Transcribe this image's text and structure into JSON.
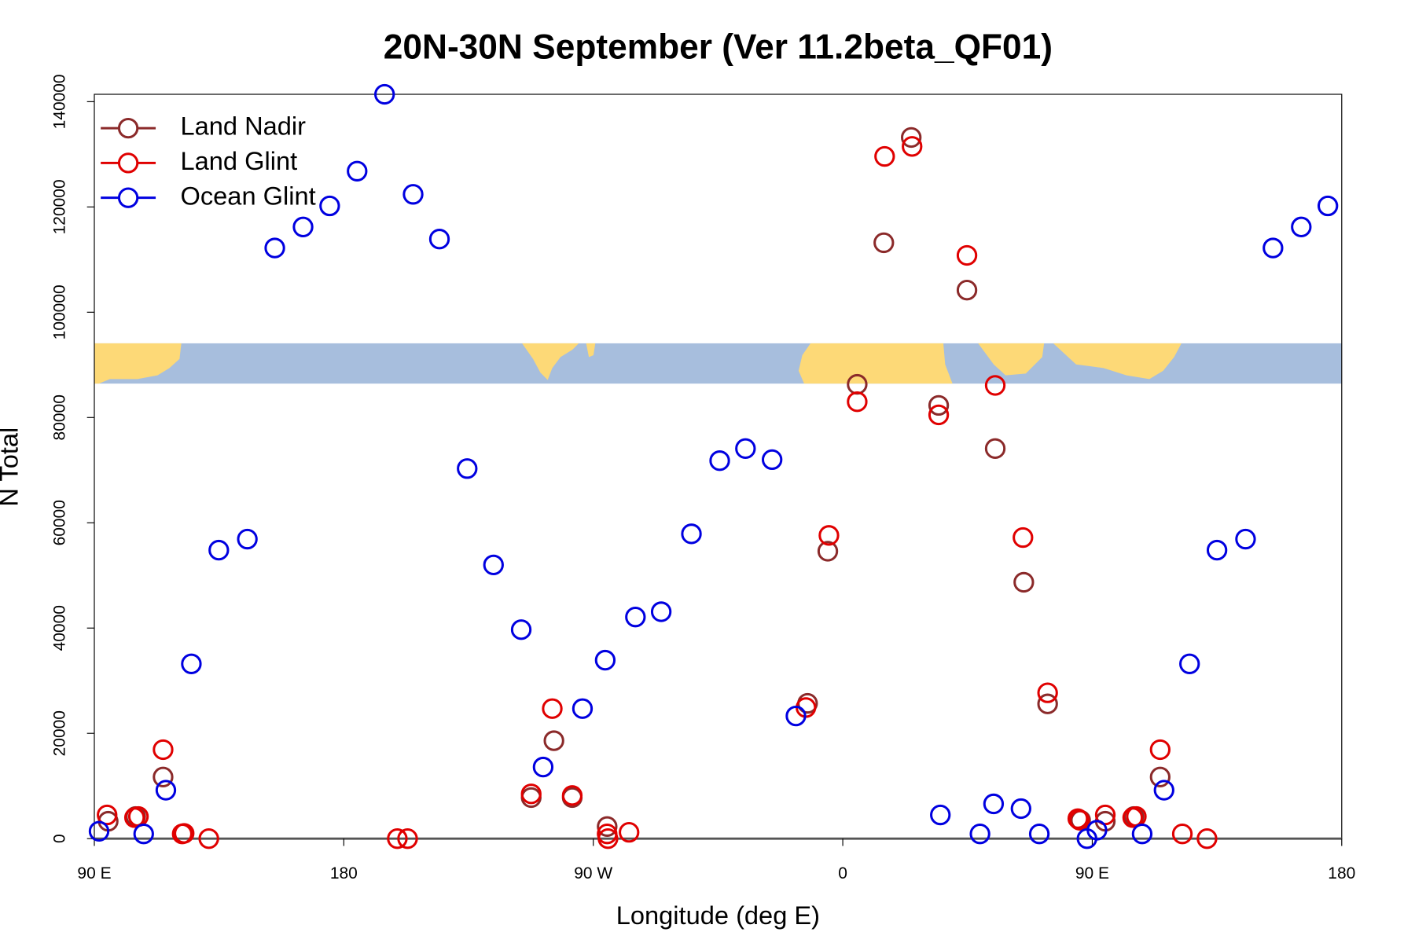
{
  "chart_data": {
    "type": "scatter",
    "title": "20N-30N September (Ver 11.2beta_QF01)",
    "x_label": "Longitude (deg E)",
    "y_label": "N Total",
    "xlim": [
      90,
      540
    ],
    "ylim": [
      0,
      141400
    ],
    "xticks": [
      {
        "value": 90,
        "label": "90 E"
      },
      180,
      {
        "value": 270,
        "label": "90 W"
      },
      {
        "value": 360,
        "label": "0"
      },
      {
        "value": 450,
        "label": "90 E"
      },
      {
        "value": 540,
        "label": "180"
      }
    ],
    "yticks": [
      0,
      20000,
      40000,
      60000,
      80000,
      100000,
      120000,
      140000
    ],
    "legend": "top-left",
    "series": [
      {
        "name": "Land Nadir",
        "color": "#8b2a2a",
        "x": [
          95,
          104.9,
          114.8,
          255.8,
          247.6,
          262.4,
          275,
          347.3,
          354.6,
          365.2,
          374.8,
          384.7,
          394.6,
          404.8,
          415,
          425.3,
          433.9,
          445.8,
          454.7,
          465,
          474.5
        ],
        "values": [
          3300,
          4200,
          11700,
          18600,
          7800,
          7800,
          2300,
          25700,
          54600,
          86300,
          113200,
          133200,
          82300,
          104200,
          74100,
          48700,
          25600,
          3500,
          3300,
          4200,
          11700
        ]
      },
      {
        "name": "Land Glint",
        "color": "#e00000",
        "x": [
          94.6,
          104.5,
          105.9,
          114.8,
          121.7,
          122.4,
          131.3,
          199.3,
          203,
          247.6,
          255.2,
          262.4,
          275,
          275.3,
          282.9,
          346.7,
          355,
          365.2,
          375.1,
          385,
          394.6,
          404.8,
          415,
          425,
          433.9,
          444.8,
          445.4,
          454.7,
          464.6,
          465.9,
          474.5,
          482.5,
          491.4
        ],
        "values": [
          4500,
          4000,
          4200,
          16900,
          900,
          1000,
          0,
          0,
          0,
          8500,
          24700,
          8200,
          900,
          0,
          1200,
          24900,
          57600,
          83000,
          129600,
          131500,
          80500,
          110800,
          86100,
          57200,
          27700,
          3800,
          3500,
          4500,
          4000,
          4200,
          16900,
          900,
          0
        ]
      },
      {
        "name": "Ocean Glint",
        "color": "#0000e0",
        "x": [
          91.7,
          107.8,
          115.8,
          125,
          134.9,
          145.2,
          155.1,
          165.3,
          174.9,
          184.8,
          194.7,
          205,
          214.5,
          224.5,
          234,
          244,
          251.9,
          266.1,
          274.3,
          285.2,
          294.5,
          305.4,
          315.6,
          324.9,
          334.5,
          343.1,
          395.2,
          409.5,
          414.4,
          424.3,
          430.9,
          448.1,
          451.7,
          468,
          475.9,
          485.1,
          495,
          505.3,
          515.2,
          525.4,
          535
        ],
        "values": [
          1400,
          900,
          9200,
          33200,
          54800,
          56900,
          112200,
          116200,
          120200,
          126800,
          141400,
          122400,
          113900,
          70300,
          52000,
          39700,
          13600,
          24700,
          33900,
          42100,
          43100,
          57900,
          71800,
          74100,
          72000,
          23300,
          4500,
          900,
          6600,
          5700,
          900,
          0,
          1600,
          900,
          9200,
          33200,
          54800,
          56900,
          112200,
          116200,
          120200
        ]
      }
    ]
  }
}
